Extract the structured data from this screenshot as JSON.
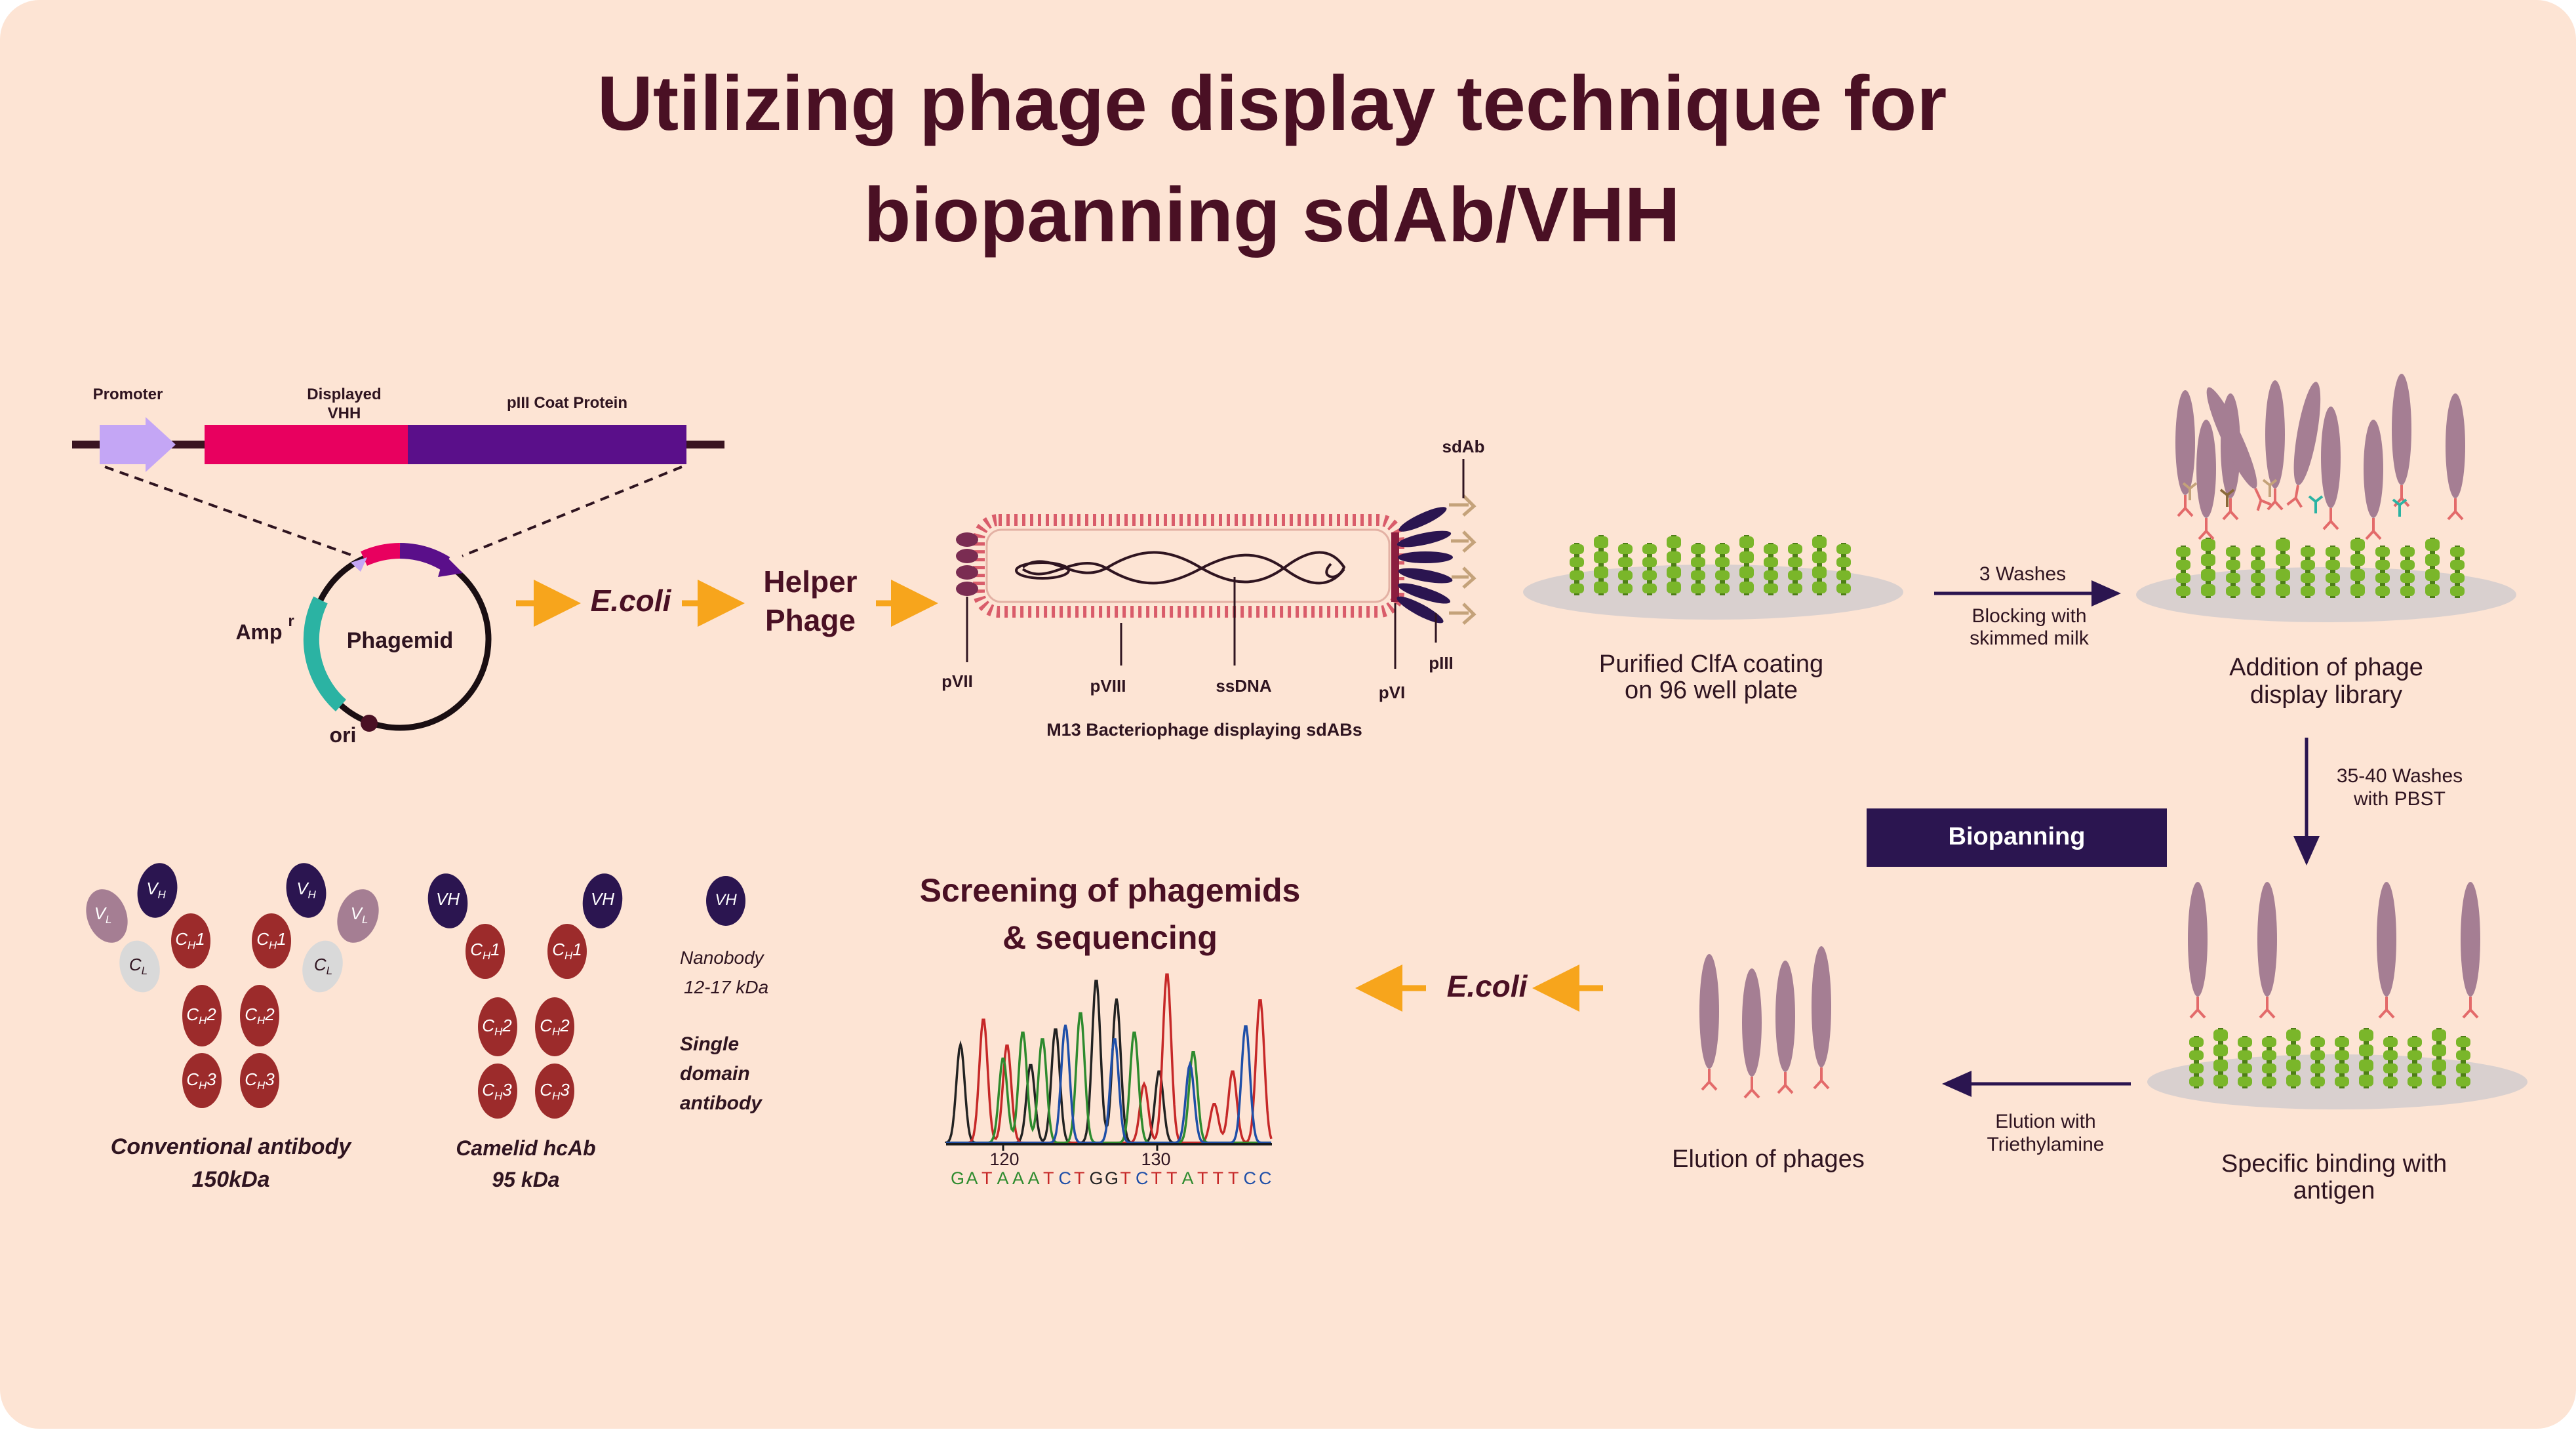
{
  "title": {
    "line1": "Utilizing phage display technique for",
    "line2": "biopanning sdAb/VHH"
  },
  "colors": {
    "background": "#fde4d4",
    "title": "#4a1024",
    "promoter": "#c4a6f5",
    "vhh_segment": "#e8005f",
    "pIII_segment": "#5a0f8a",
    "ampr": "#2bb3a3",
    "arrow_orange": "#f7a51c",
    "arrow_navy": "#2b1550",
    "coat_protein": "#7ab62a",
    "phage_body": "#a57e93",
    "antibody_heavy": "#9c2b2b",
    "antibody_light": "#d9d9d9",
    "vh_domain": "#2b1550",
    "biopanning_box": "#2b1550"
  },
  "vector": {
    "promoter": "Promoter",
    "displayed": "Displayed",
    "vhh": "VHH",
    "piii_coat": "pIII Coat Protein"
  },
  "phagemid": {
    "label": "Phagemid",
    "amp": "Amp",
    "amp_sup": "r",
    "ori": "ori"
  },
  "flow": {
    "ecoli": "E.coli",
    "helper_line1": "Helper",
    "helper_line2": "Phage"
  },
  "m13": {
    "caption": "M13 Bacteriophage displaying sdABs",
    "pvii": "pVII",
    "pviii": "pVIII",
    "ssdna": "ssDNA",
    "pvi": "pVI",
    "piii": "pIII",
    "sdab": "sdAb"
  },
  "steps": {
    "coating_line1": "Purified ClfA coating",
    "coating_line2": "on 96 well plate",
    "washes3": "3 Washes",
    "blocking_line1": "Blocking with",
    "blocking_line2": "skimmed milk",
    "addition_line1": "Addition of phage",
    "addition_line2": "display library",
    "washes35_line1": "35-40 Washes",
    "washes35_line2": "with PBST",
    "biopanning": "Biopanning",
    "binding_line1": "Specific binding with",
    "binding_line2": "antigen",
    "elution_with_line1": "Elution with",
    "elution_with_line2": "Triethylamine",
    "elution_phages": "Elution of phages",
    "ecoli2": "E.coli",
    "screening_line1": "Screening of phagemids",
    "screening_line2": "& sequencing"
  },
  "chromatogram": {
    "tick120": "120",
    "tick130": "130",
    "bases": [
      {
        "b": "G",
        "c": "#2e8b2e"
      },
      {
        "b": "A",
        "c": "#2e8b2e"
      },
      {
        "b": "T",
        "c": "#c62828"
      },
      {
        "b": "A",
        "c": "#2e8b2e"
      },
      {
        "b": "A",
        "c": "#2e8b2e"
      },
      {
        "b": "A",
        "c": "#2e8b2e"
      },
      {
        "b": "T",
        "c": "#c62828"
      },
      {
        "b": "C",
        "c": "#1f4fa8"
      },
      {
        "b": "T",
        "c": "#c62828"
      },
      {
        "b": "G",
        "c": "#222222"
      },
      {
        "b": "G",
        "c": "#222222"
      },
      {
        "b": "T",
        "c": "#c62828"
      },
      {
        "b": "C",
        "c": "#1f4fa8"
      },
      {
        "b": "T",
        "c": "#c62828"
      },
      {
        "b": "T",
        "c": "#c62828"
      },
      {
        "b": "A",
        "c": "#2e8b2e"
      },
      {
        "b": "T",
        "c": "#c62828"
      },
      {
        "b": "T",
        "c": "#c62828"
      },
      {
        "b": "T",
        "c": "#c62828"
      },
      {
        "b": "C",
        "c": "#1f4fa8"
      },
      {
        "b": "C",
        "c": "#1f4fa8"
      }
    ]
  },
  "antibodies": {
    "conv_line1": "Conventional antibody",
    "conv_line2": "150kDa",
    "camelid_line1": "Camelid hcAb",
    "camelid_line2": "95 kDa",
    "nano_line1": "Nanobody",
    "nano_line2": "12-17 kDa",
    "single_line1": "Single",
    "single_line2": "domain",
    "single_line3": "antibody",
    "v": "V",
    "c": "C",
    "sub_h": "H",
    "sub_l": "L",
    "one": "1",
    "two": "2",
    "three": "3"
  }
}
